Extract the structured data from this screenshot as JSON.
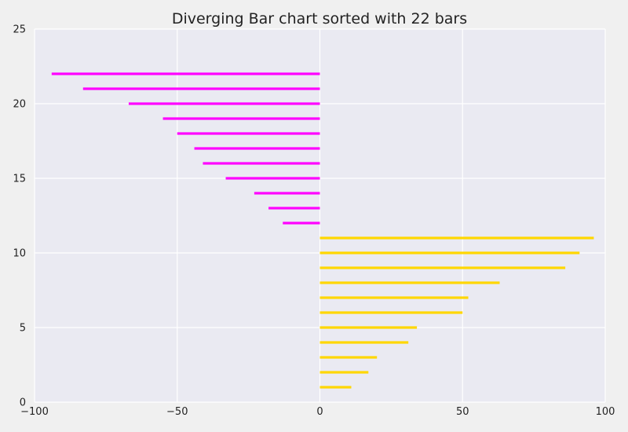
{
  "chart_data": {
    "type": "bar",
    "orientation": "horizontal",
    "title": "Diverging Bar chart sorted with 22 bars",
    "xlabel": "",
    "ylabel": "",
    "xlim": [
      -100,
      100
    ],
    "ylim": [
      0,
      25
    ],
    "x_ticks": [
      -100,
      -50,
      0,
      50,
      100
    ],
    "x_tick_labels": [
      "−100",
      "−50",
      "0",
      "50",
      "100"
    ],
    "y_ticks": [
      0,
      5,
      10,
      15,
      20,
      25
    ],
    "y_tick_labels": [
      "0",
      "5",
      "10",
      "15",
      "20",
      "25"
    ],
    "grid": true,
    "colors": {
      "positive": "#FFD700",
      "negative": "#FF00FF",
      "plot_background": "#EAEAF2",
      "figure_background": "#F0F0F0",
      "grid": "#FFFFFF"
    },
    "positions": [
      1,
      2,
      3,
      4,
      5,
      6,
      7,
      8,
      9,
      10,
      11,
      12,
      13,
      14,
      15,
      16,
      17,
      18,
      19,
      20,
      21,
      22
    ],
    "values": [
      11,
      17,
      20,
      31,
      34,
      50,
      52,
      63,
      86,
      91,
      96,
      -13,
      -18,
      -23,
      -33,
      -41,
      -44,
      -50,
      -55,
      -67,
      -83,
      -94
    ]
  }
}
